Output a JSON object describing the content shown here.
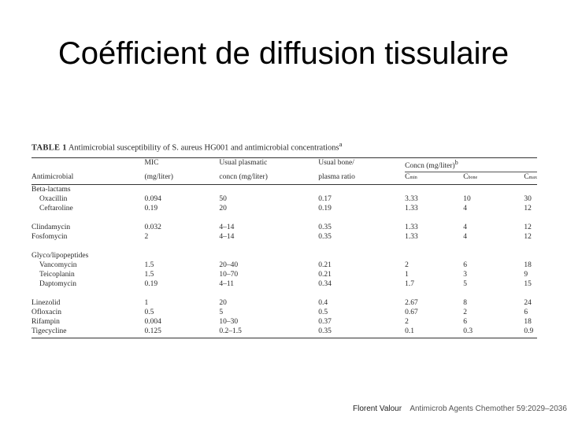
{
  "title": "Coéfficient de diffusion tissulaire",
  "table": {
    "caption_label": "TABLE 1",
    "caption_text": "Antimicrobial susceptibility of S. aureus HG001 and antimicrobial concentrations",
    "caption_sup": "a",
    "conc_group_header": "Concn (mg/liter)",
    "conc_group_sup": "b",
    "col_header_line1": [
      "",
      "MIC",
      "Usual plasmatic",
      "Usual bone/",
      "",
      "",
      ""
    ],
    "col_header_line2": [
      "Antimicrobial",
      "(mg/liter)",
      "concn (mg/liter)",
      "plasma ratio",
      "C",
      "C",
      "C"
    ],
    "col_subscripts": [
      "min",
      "bone",
      "max"
    ],
    "groups": [
      {
        "label": "Beta-lactams",
        "rows": [
          [
            "Oxacillin",
            "0.094",
            "50",
            "0.17",
            "3.33",
            "10",
            "30"
          ],
          [
            "Ceftaroline",
            "0.19",
            "20",
            "0.19",
            "1.33",
            "4",
            "12"
          ]
        ]
      },
      {
        "label": "",
        "rows": [
          [
            "Clindamycin",
            "0.032",
            "4–14",
            "0.35",
            "1.33",
            "4",
            "12"
          ],
          [
            "Fosfomycin",
            "2",
            "4–14",
            "0.35",
            "1.33",
            "4",
            "12"
          ]
        ]
      },
      {
        "label": "Glyco/lipopeptides",
        "rows": [
          [
            "Vancomycin",
            "1.5",
            "20–40",
            "0.21",
            "2",
            "6",
            "18"
          ],
          [
            "Teicoplanin",
            "1.5",
            "10–70",
            "0.21",
            "1",
            "3",
            "9"
          ],
          [
            "Daptomycin",
            "0.19",
            "4–11",
            "0.34",
            "1.7",
            "5",
            "15"
          ]
        ]
      },
      {
        "label": "",
        "rows": [
          [
            "Linezolid",
            "1",
            "20",
            "0.4",
            "2.67",
            "8",
            "24"
          ],
          [
            "Ofloxacin",
            "0.5",
            "5",
            "0.5",
            "0.67",
            "2",
            "6"
          ],
          [
            "Rifampin",
            "0.004",
            "10–30",
            "0.37",
            "2",
            "6",
            "18"
          ],
          [
            "Tigecycline",
            "0.125",
            "0.2–1.5",
            "0.35",
            "0.1",
            "0.3",
            "0.9"
          ]
        ]
      }
    ]
  },
  "citation": {
    "author": "Florent Valour",
    "reference": "Antimicrob Agents Chemother 59:2029–2036."
  }
}
